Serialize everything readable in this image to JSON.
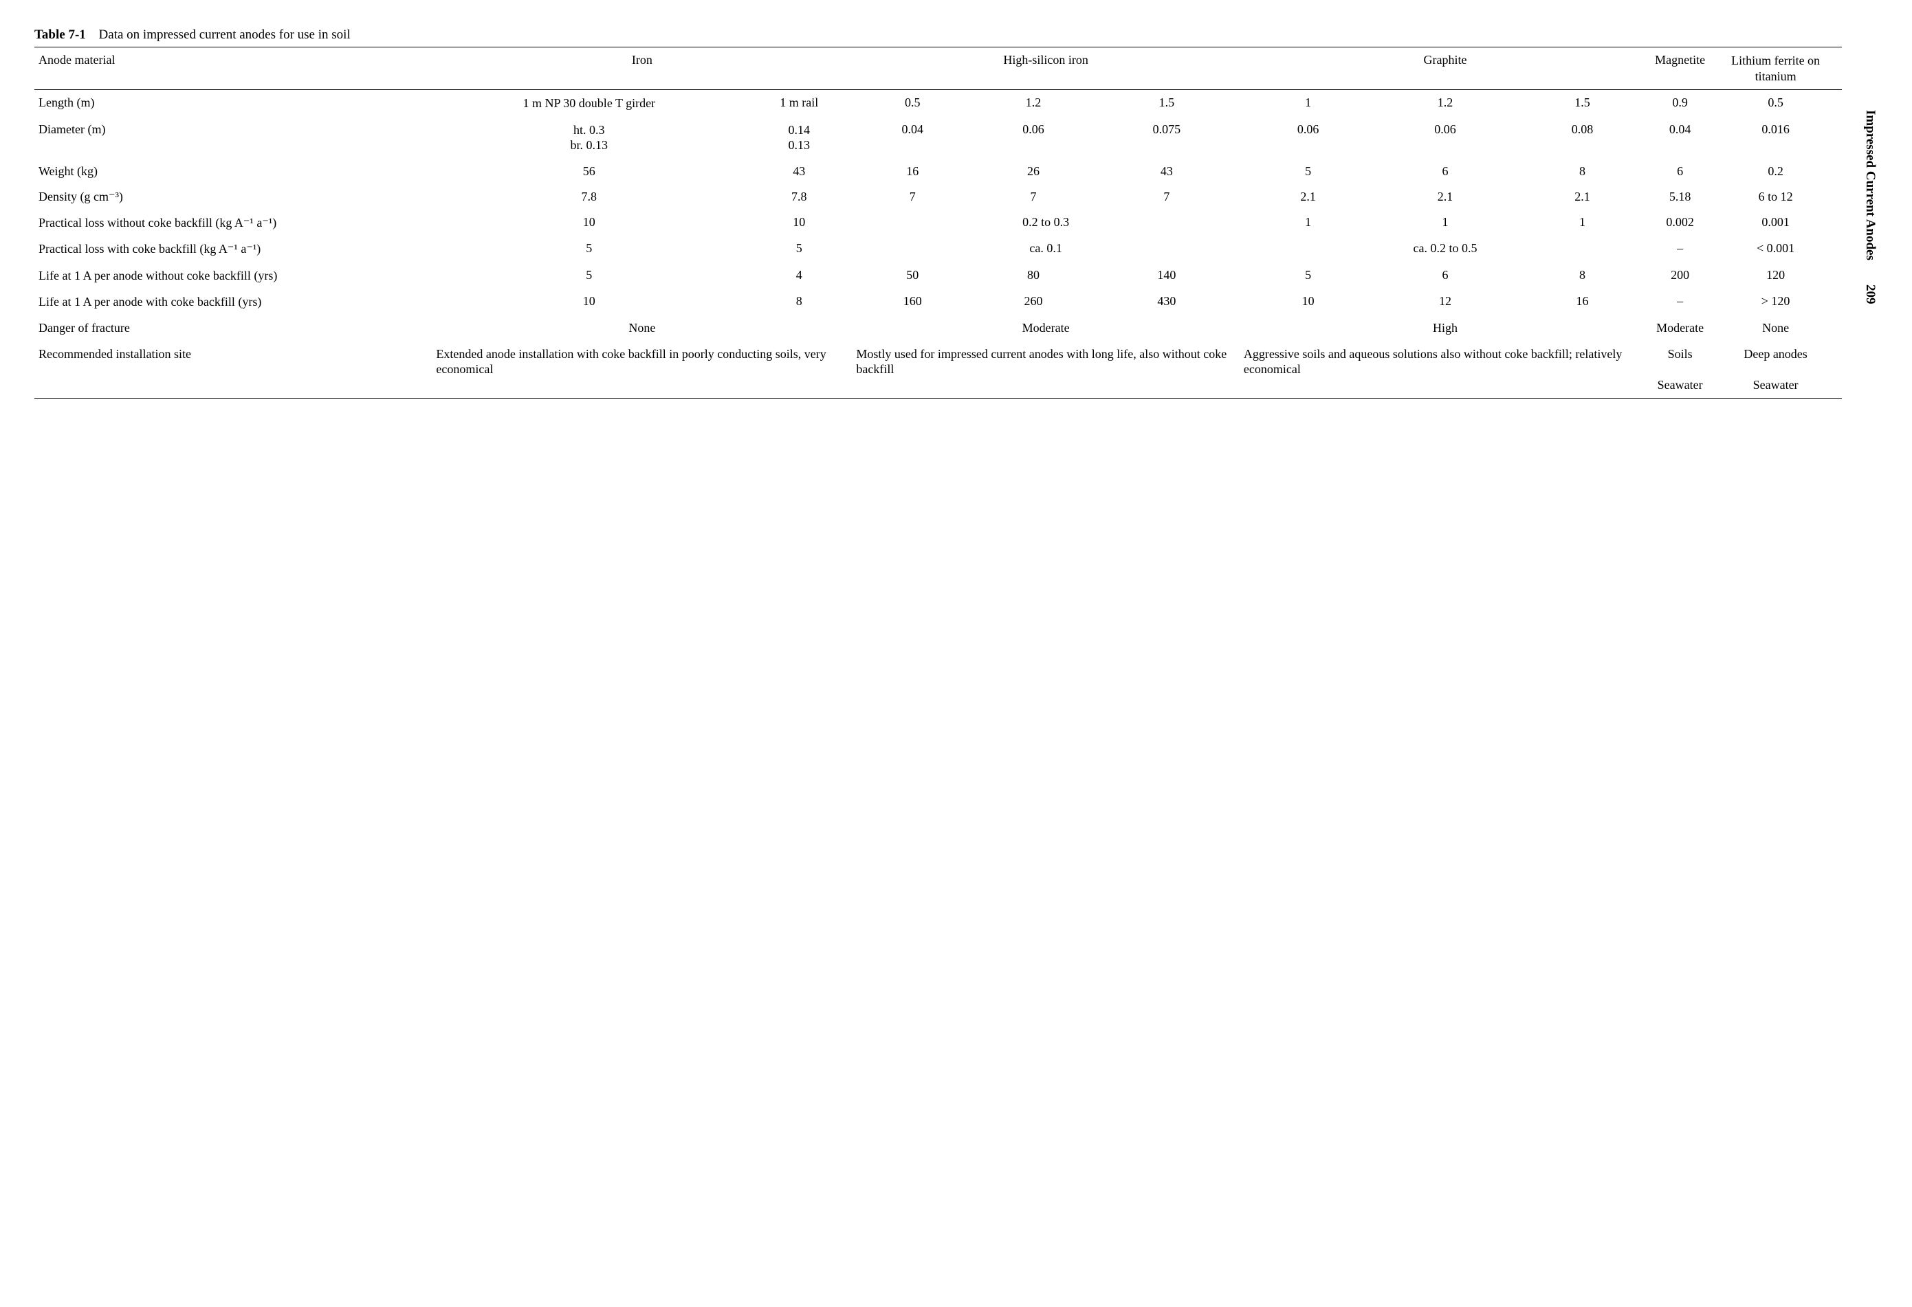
{
  "table": {
    "label": "Table 7-1",
    "caption": "Data on impressed current anodes for use in soil",
    "headers": {
      "anode_material": "Anode material",
      "iron": "Iron",
      "hsi": "High-silicon iron",
      "graphite": "Graphite",
      "magnetite": "Magnetite",
      "lft": "Lithium ferrite on titanium"
    },
    "rows": {
      "length": {
        "label": "Length (m)",
        "iron_a": "1 m NP 30 double T girder",
        "iron_b": "1 m rail",
        "hsi_a": "0.5",
        "hsi_b": "1.2",
        "hsi_c": "1.5",
        "gr_a": "1",
        "gr_b": "1.2",
        "gr_c": "1.5",
        "mag": "0.9",
        "lft": "0.5"
      },
      "diameter": {
        "label": "Diameter (m)",
        "iron_a": "ht. 0.3\nbr. 0.13",
        "iron_b": "0.14\n0.13",
        "hsi_a": "0.04",
        "hsi_b": "0.06",
        "hsi_c": "0.075",
        "gr_a": "0.06",
        "gr_b": "0.06",
        "gr_c": "0.08",
        "mag": "0.04",
        "lft": "0.016"
      },
      "weight": {
        "label": "Weight (kg)",
        "iron_a": "56",
        "iron_b": "43",
        "hsi_a": "16",
        "hsi_b": "26",
        "hsi_c": "43",
        "gr_a": "5",
        "gr_b": "6",
        "gr_c": "8",
        "mag": "6",
        "lft": "0.2"
      },
      "density": {
        "label": "Density (g cm⁻³)",
        "iron_a": "7.8",
        "iron_b": "7.8",
        "hsi_a": "7",
        "hsi_b": "7",
        "hsi_c": "7",
        "gr_a": "2.1",
        "gr_b": "2.1",
        "gr_c": "2.1",
        "mag": "5.18",
        "lft": "6 to 12"
      },
      "loss_no_coke": {
        "label": "Practical loss without coke backfill (kg A⁻¹ a⁻¹)",
        "iron_a": "10",
        "iron_b": "10",
        "hsi_merge": "0.2 to 0.3",
        "gr_a": "1",
        "gr_b": "1",
        "gr_c": "1",
        "mag": "0.002",
        "lft": "0.001"
      },
      "loss_coke": {
        "label": "Practical loss with coke backfill (kg A⁻¹ a⁻¹)",
        "iron_a": "5",
        "iron_b": "5",
        "hsi_merge": "ca. 0.1",
        "gr_merge": "ca. 0.2 to 0.5",
        "mag": "–",
        "lft": "< 0.001"
      },
      "life_no_coke": {
        "label": "Life at 1 A per anode without coke backfill (yrs)",
        "iron_a": "5",
        "iron_b": "4",
        "hsi_a": "50",
        "hsi_b": "80",
        "hsi_c": "140",
        "gr_a": "5",
        "gr_b": "6",
        "gr_c": "8",
        "mag": "200",
        "lft": "120"
      },
      "life_coke": {
        "label": "Life at 1 A per anode with coke backfill (yrs)",
        "iron_a": "10",
        "iron_b": "8",
        "hsi_a": "160",
        "hsi_b": "260",
        "hsi_c": "430",
        "gr_a": "10",
        "gr_b": "12",
        "gr_c": "16",
        "mag": "–",
        "lft": "> 120"
      },
      "fracture": {
        "label": "Danger of fracture",
        "iron_merge": "None",
        "hsi_merge": "Moderate",
        "gr_merge": "High",
        "mag": "Moderate",
        "lft": "None"
      },
      "site": {
        "label": "Recommended installation site",
        "iron_merge": "Extended anode installation with coke backfill in poorly conducting soils, very economical",
        "hsi_merge": "Mostly used for impressed current anodes with long life, also without coke backfill",
        "gr_merge": "Aggressive soils and aqueous solutions also without coke backfill; relatively economical",
        "mag": "Soils\n\nSeawater",
        "lft": "Deep anodes\n\nSeawater"
      }
    }
  },
  "side": {
    "title": "Impressed Current Anodes",
    "pagenum": "209"
  },
  "style": {
    "font_family": "Times New Roman",
    "font_size_pt": 18,
    "text_color": "#000000",
    "background": "#ffffff",
    "rule_color": "#000000"
  }
}
